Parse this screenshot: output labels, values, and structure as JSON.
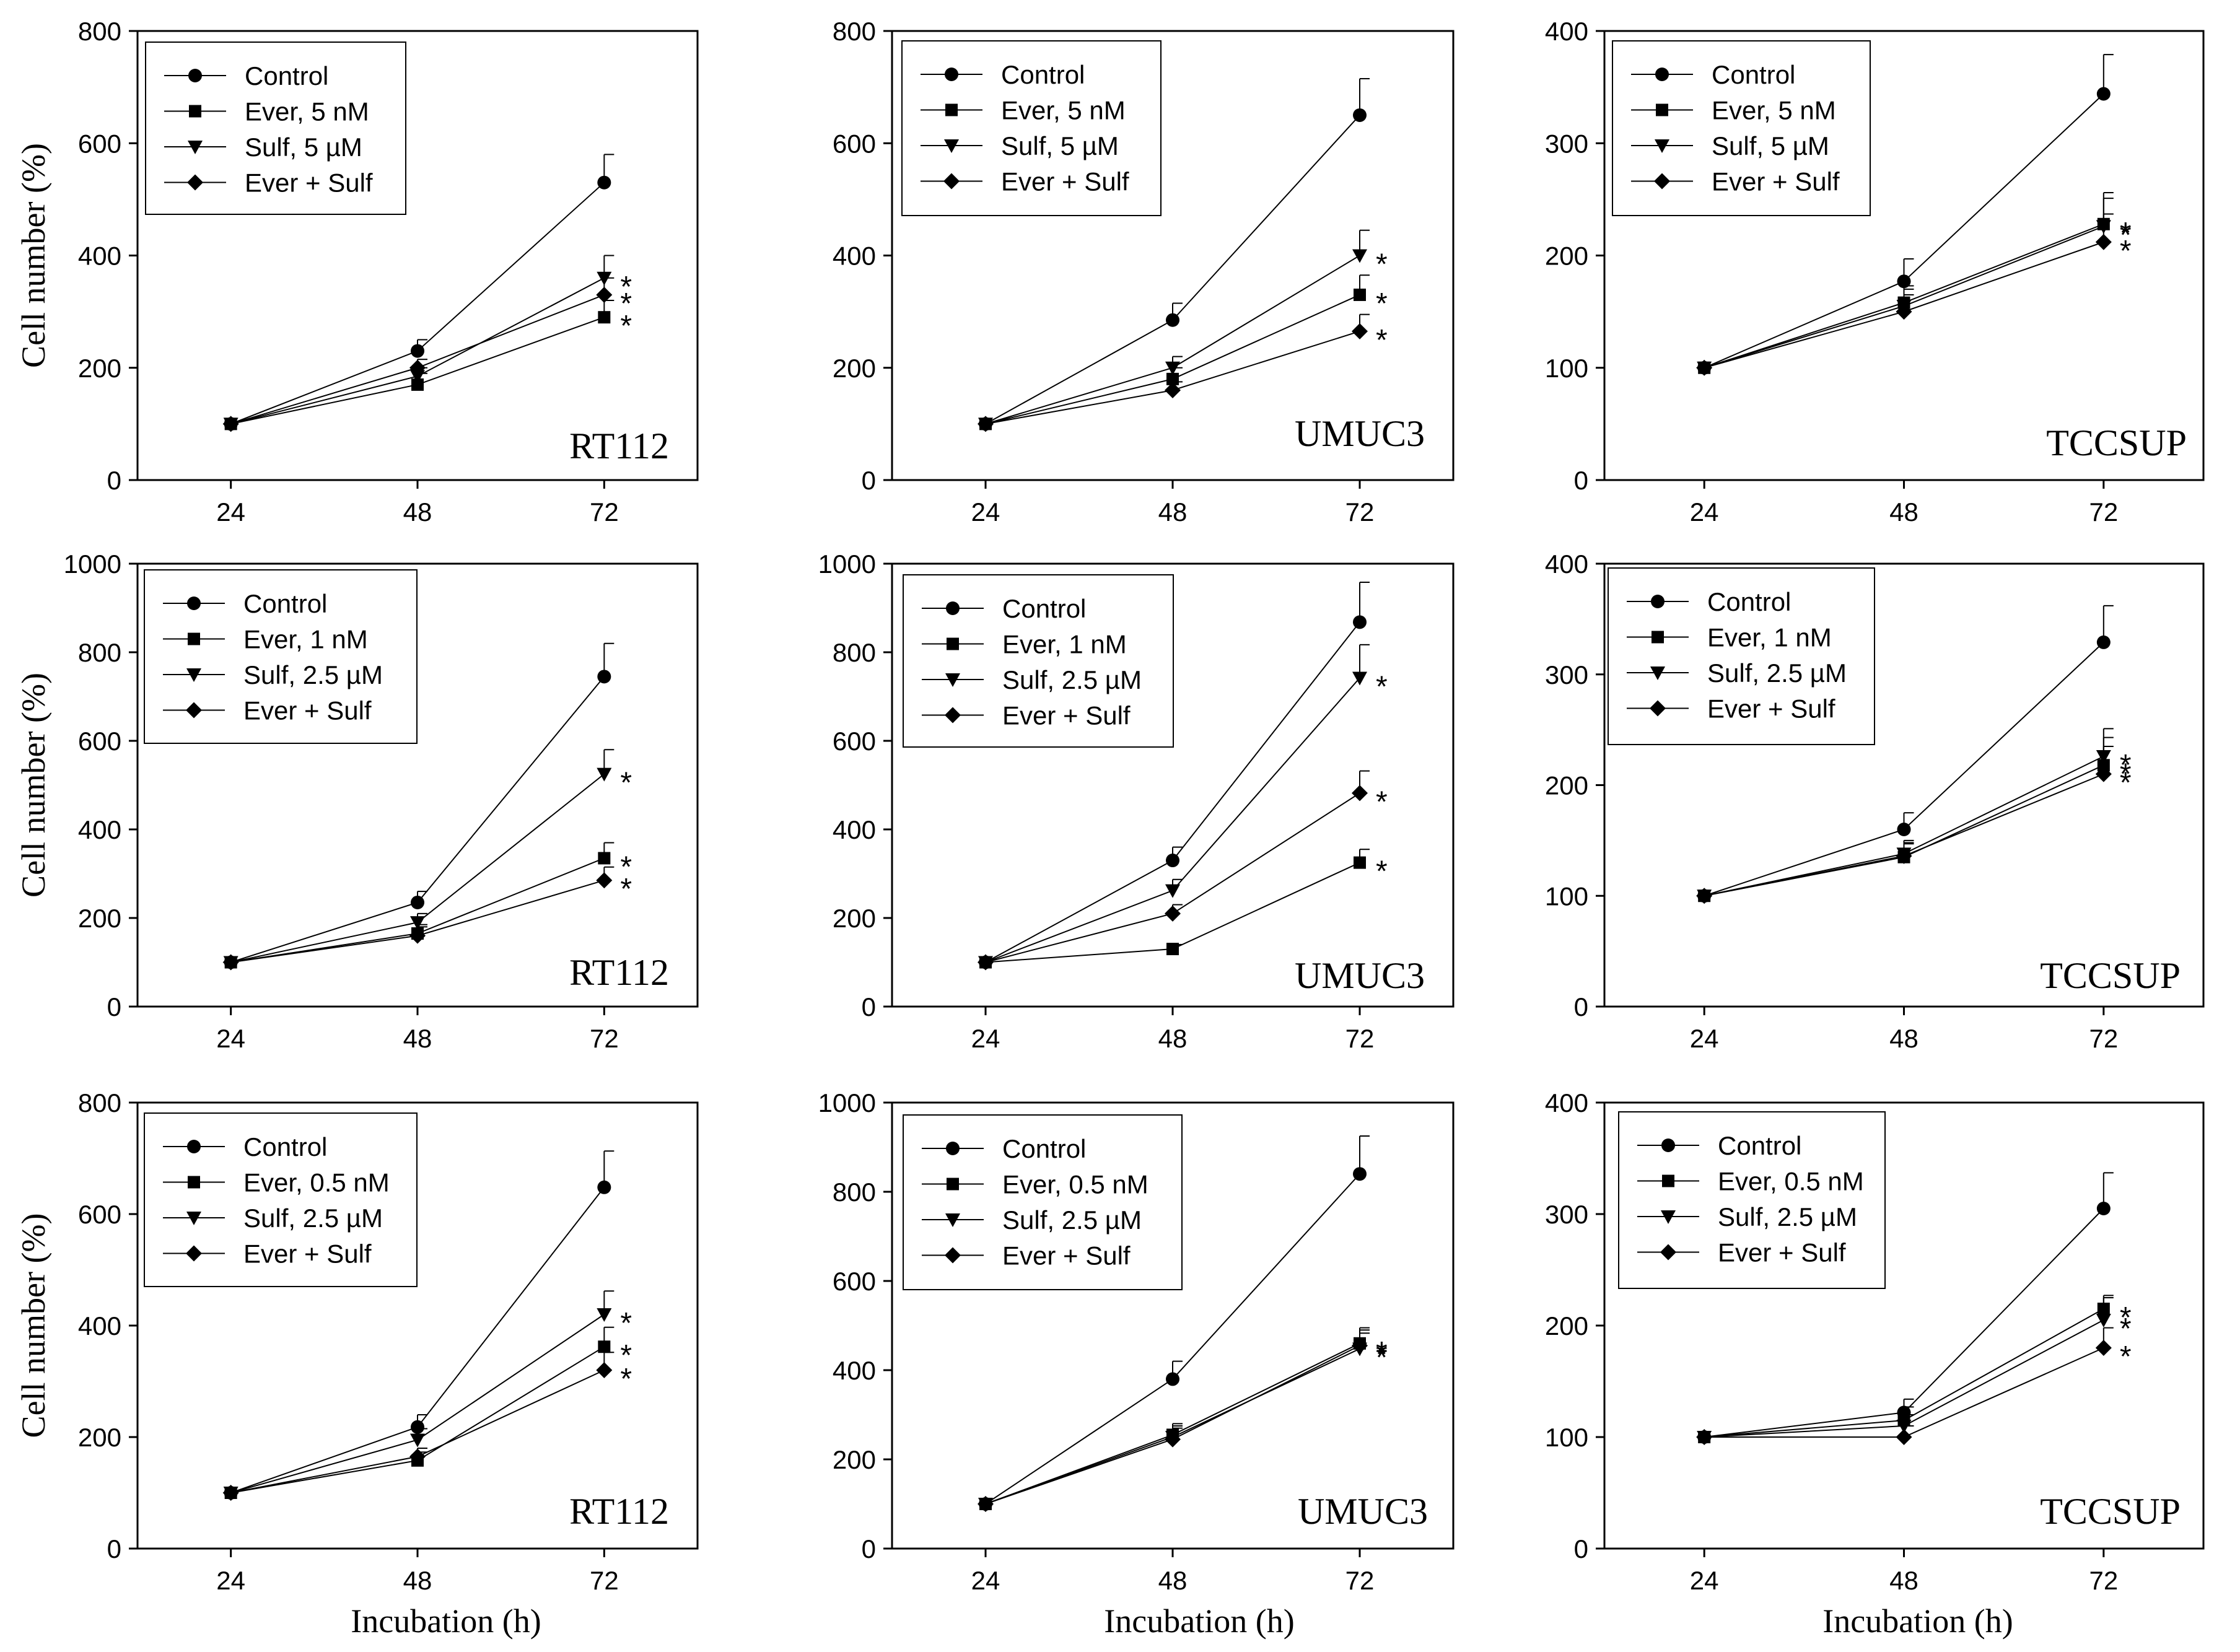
{
  "figure": {
    "ylabel": "Cell number (%)",
    "xlabel": "Incubation (h)",
    "line_color": "#000000",
    "marker_shapes": [
      "circle",
      "square",
      "triangle-down",
      "diamond"
    ]
  },
  "chart_data": [
    {
      "type": "line",
      "cell_line": "RT112",
      "x": [
        24,
        48,
        72
      ],
      "xticks": [
        "24",
        "48",
        "72"
      ],
      "ylim": [
        0,
        800
      ],
      "yticks": [
        "0",
        "200",
        "400",
        "600",
        "800"
      ],
      "ylabel": "Cell number (%)",
      "xlabel": "",
      "legend_position": "top-left",
      "series": [
        {
          "name": "Control",
          "values": [
            100,
            230,
            530
          ],
          "errors": [
            0,
            20,
            50
          ],
          "star": ""
        },
        {
          "name": "Ever, 5 nM",
          "values": [
            100,
            170,
            290
          ],
          "errors": [
            0,
            20,
            30
          ],
          "star": "*"
        },
        {
          "name": "Sulf, 5 µM",
          "values": [
            100,
            185,
            360
          ],
          "errors": [
            0,
            15,
            40
          ],
          "star": "*"
        },
        {
          "name": "Ever + Sulf",
          "values": [
            100,
            200,
            330
          ],
          "errors": [
            0,
            15,
            30
          ],
          "star": "*"
        }
      ]
    },
    {
      "type": "line",
      "cell_line": "UMUC3",
      "x": [
        24,
        48,
        72
      ],
      "xticks": [
        "24",
        "48",
        "72"
      ],
      "ylim": [
        0,
        800
      ],
      "yticks": [
        "0",
        "200",
        "400",
        "600",
        "800"
      ],
      "ylabel": "",
      "xlabel": "",
      "legend_position": "top-left",
      "series": [
        {
          "name": "Control",
          "values": [
            100,
            285,
            650
          ],
          "errors": [
            0,
            30,
            65
          ],
          "star": ""
        },
        {
          "name": "Ever, 5 nM",
          "values": [
            100,
            180,
            330
          ],
          "errors": [
            0,
            20,
            35
          ],
          "star": "*"
        },
        {
          "name": "Sulf, 5 µM",
          "values": [
            100,
            200,
            400
          ],
          "errors": [
            0,
            20,
            45
          ],
          "star": "*"
        },
        {
          "name": "Ever + Sulf",
          "values": [
            100,
            160,
            265
          ],
          "errors": [
            0,
            15,
            30
          ],
          "star": "*"
        }
      ]
    },
    {
      "type": "line",
      "cell_line": "TCCSUP",
      "x": [
        24,
        48,
        72
      ],
      "xticks": [
        "24",
        "48",
        "72"
      ],
      "ylim": [
        0,
        400
      ],
      "yticks": [
        "0",
        "100",
        "200",
        "300",
        "400"
      ],
      "ylabel": "",
      "xlabel": "",
      "legend_position": "top-left",
      "series": [
        {
          "name": "Control",
          "values": [
            100,
            177,
            344
          ],
          "errors": [
            0,
            20,
            35
          ],
          "star": ""
        },
        {
          "name": "Ever, 5 nM",
          "values": [
            100,
            158,
            228
          ],
          "errors": [
            0,
            15,
            28
          ],
          "star": "*"
        },
        {
          "name": "Sulf, 5 µM",
          "values": [
            100,
            155,
            226
          ],
          "errors": [
            0,
            15,
            25
          ],
          "star": "*"
        },
        {
          "name": "Ever + Sulf",
          "values": [
            100,
            150,
            212
          ],
          "errors": [
            0,
            15,
            25
          ],
          "star": "*"
        }
      ]
    },
    {
      "type": "line",
      "cell_line": "RT112",
      "x": [
        24,
        48,
        72
      ],
      "xticks": [
        "24",
        "48",
        "72"
      ],
      "ylim": [
        0,
        1000
      ],
      "yticks": [
        "0",
        "200",
        "400",
        "600",
        "800",
        "1000"
      ],
      "ylabel": "Cell number (%)",
      "xlabel": "",
      "legend_position": "top-left",
      "series": [
        {
          "name": "Control",
          "values": [
            100,
            235,
            745
          ],
          "errors": [
            0,
            25,
            75
          ],
          "star": ""
        },
        {
          "name": "Ever, 1 nM",
          "values": [
            100,
            165,
            335
          ],
          "errors": [
            0,
            20,
            35
          ],
          "star": "*"
        },
        {
          "name": "Sulf, 2.5 µM",
          "values": [
            100,
            190,
            525
          ],
          "errors": [
            0,
            20,
            55
          ],
          "star": "*"
        },
        {
          "name": "Ever + Sulf",
          "values": [
            100,
            160,
            285
          ],
          "errors": [
            0,
            20,
            30
          ],
          "star": "*"
        }
      ]
    },
    {
      "type": "line",
      "cell_line": "UMUC3",
      "x": [
        24,
        48,
        72
      ],
      "xticks": [
        "24",
        "48",
        "72"
      ],
      "ylim": [
        0,
        1000
      ],
      "yticks": [
        "0",
        "200",
        "400",
        "600",
        "800",
        "1000"
      ],
      "ylabel": "",
      "xlabel": "",
      "legend_position": "top-left",
      "series": [
        {
          "name": "Control",
          "values": [
            100,
            330,
            868
          ],
          "errors": [
            0,
            30,
            90
          ],
          "star": ""
        },
        {
          "name": "Ever, 1 nM",
          "values": [
            100,
            130,
            325
          ],
          "errors": [
            0,
            10,
            30
          ],
          "star": "*"
        },
        {
          "name": "Sulf, 2.5 µM",
          "values": [
            100,
            262,
            742
          ],
          "errors": [
            0,
            25,
            75
          ],
          "star": "*"
        },
        {
          "name": "Ever + Sulf",
          "values": [
            100,
            210,
            482
          ],
          "errors": [
            0,
            20,
            50
          ],
          "star": "*"
        }
      ]
    },
    {
      "type": "line",
      "cell_line": "TCCSUP",
      "x": [
        24,
        48,
        72
      ],
      "xticks": [
        "24",
        "48",
        "72"
      ],
      "ylim": [
        0,
        400
      ],
      "yticks": [
        "0",
        "100",
        "200",
        "300",
        "400"
      ],
      "ylabel": "",
      "xlabel": "",
      "legend_position": "top-left",
      "series": [
        {
          "name": "Control",
          "values": [
            100,
            160,
            329
          ],
          "errors": [
            0,
            15,
            33
          ],
          "star": ""
        },
        {
          "name": "Ever, 1 nM",
          "values": [
            100,
            135,
            218
          ],
          "errors": [
            0,
            12,
            25
          ],
          "star": "*"
        },
        {
          "name": "Sulf, 2.5 µM",
          "values": [
            100,
            138,
            226
          ],
          "errors": [
            0,
            12,
            25
          ],
          "star": "*"
        },
        {
          "name": "Ever + Sulf",
          "values": [
            100,
            136,
            210
          ],
          "errors": [
            0,
            12,
            25
          ],
          "star": "*"
        }
      ]
    },
    {
      "type": "line",
      "cell_line": "RT112",
      "x": [
        24,
        48,
        72
      ],
      "xticks": [
        "24",
        "48",
        "72"
      ],
      "ylim": [
        0,
        800
      ],
      "yticks": [
        "0",
        "200",
        "400",
        "600",
        "800"
      ],
      "ylabel": "Cell number (%)",
      "xlabel": "Incubation (h)",
      "legend_position": "top-left",
      "series": [
        {
          "name": "Control",
          "values": [
            100,
            218,
            648
          ],
          "errors": [
            0,
            22,
            65
          ],
          "star": ""
        },
        {
          "name": "Ever, 0.5 nM",
          "values": [
            100,
            158,
            362
          ],
          "errors": [
            0,
            15,
            35
          ],
          "star": "*"
        },
        {
          "name": "Sulf, 2.5 µM",
          "values": [
            100,
            195,
            420
          ],
          "errors": [
            0,
            20,
            42
          ],
          "star": "*"
        },
        {
          "name": "Ever + Sulf",
          "values": [
            100,
            165,
            320
          ],
          "errors": [
            0,
            15,
            32
          ],
          "star": "*"
        }
      ]
    },
    {
      "type": "line",
      "cell_line": "UMUC3",
      "x": [
        24,
        48,
        72
      ],
      "xticks": [
        "24",
        "48",
        "72"
      ],
      "ylim": [
        0,
        1000
      ],
      "yticks": [
        "0",
        "200",
        "400",
        "600",
        "800",
        "1000"
      ],
      "ylabel": "",
      "xlabel": "Incubation (h)",
      "legend_position": "top-left",
      "series": [
        {
          "name": "Control",
          "values": [
            100,
            380,
            840
          ],
          "errors": [
            0,
            40,
            85
          ],
          "star": ""
        },
        {
          "name": "Ever, 0.5 nM",
          "values": [
            100,
            255,
            460
          ],
          "errors": [
            0,
            25,
            35
          ],
          "star": "*"
        },
        {
          "name": "Sulf, 2.5 µM",
          "values": [
            100,
            250,
            448
          ],
          "errors": [
            0,
            25,
            35
          ],
          "star": "*"
        },
        {
          "name": "Ever + Sulf",
          "values": [
            100,
            245,
            455
          ],
          "errors": [
            0,
            25,
            35
          ],
          "star": "*"
        }
      ]
    },
    {
      "type": "line",
      "cell_line": "TCCSUP",
      "x": [
        24,
        48,
        72
      ],
      "xticks": [
        "24",
        "48",
        "72"
      ],
      "ylim": [
        0,
        400
      ],
      "yticks": [
        "0",
        "100",
        "200",
        "300",
        "400"
      ],
      "ylabel": "",
      "xlabel": "Incubation (h)",
      "legend_position": "top-left",
      "series": [
        {
          "name": "Control",
          "values": [
            100,
            122,
            305
          ],
          "errors": [
            0,
            12,
            32
          ],
          "star": ""
        },
        {
          "name": "Ever, 0.5 nM",
          "values": [
            100,
            115,
            215
          ],
          "errors": [
            0,
            12,
            12
          ],
          "star": "*"
        },
        {
          "name": "Sulf, 2.5 µM",
          "values": [
            100,
            110,
            205
          ],
          "errors": [
            0,
            10,
            20
          ],
          "star": "*"
        },
        {
          "name": "Ever + Sulf",
          "values": [
            100,
            100,
            180
          ],
          "errors": [
            0,
            10,
            18
          ],
          "star": "*"
        }
      ]
    }
  ]
}
